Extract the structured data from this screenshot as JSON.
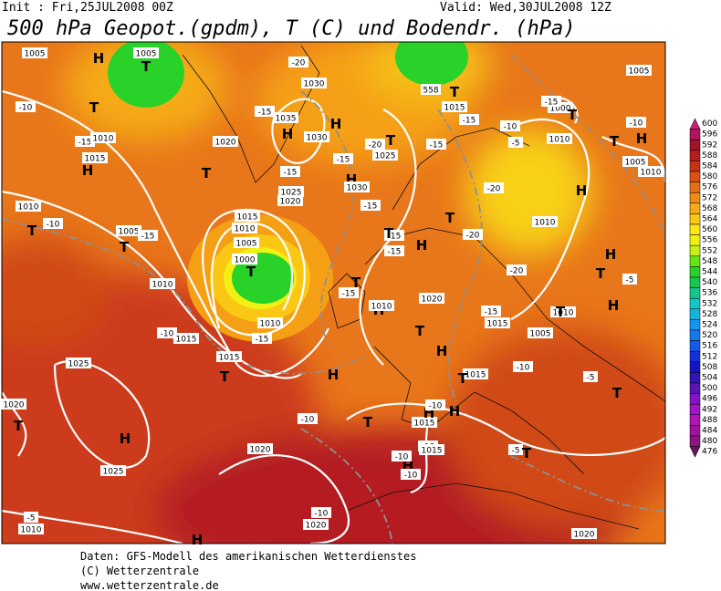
{
  "header": {
    "init": "Init : Fri,25JUL2008 00Z",
    "valid": "Valid: Wed,30JUL2008 12Z",
    "title": "500 hPa Geopot.(gpdm), T (C) und Bodendr. (hPa)"
  },
  "colorbar": {
    "values": [
      600,
      596,
      592,
      588,
      584,
      580,
      576,
      572,
      568,
      564,
      560,
      556,
      552,
      548,
      544,
      540,
      536,
      532,
      528,
      524,
      520,
      516,
      512,
      508,
      504,
      500,
      496,
      492,
      488,
      484,
      480,
      476
    ],
    "colors": [
      "#c81e78",
      "#b0145a",
      "#a01428",
      "#b41e1e",
      "#c83214",
      "#dc5014",
      "#e66e14",
      "#f08c14",
      "#f5aa14",
      "#fac814",
      "#ffe614",
      "#f0f014",
      "#c8f014",
      "#64e614",
      "#28d228",
      "#14c850",
      "#14c88c",
      "#14c8c8",
      "#14b4dc",
      "#1496f0",
      "#1478f0",
      "#145af0",
      "#1432dc",
      "#1414c8",
      "#3214b4",
      "#5a14b4",
      "#8214c8",
      "#a014c8",
      "#b414b4",
      "#a0149b",
      "#8c1482",
      "#64145a"
    ]
  },
  "map_labels": [
    "H",
    "T",
    "1005",
    "1005",
    "-10",
    "T",
    "-15",
    "1010",
    "1015",
    "H",
    "T",
    "1020",
    "H",
    "1035",
    "1030",
    "H",
    "1030",
    "-20",
    "-15",
    "-15",
    "-15",
    "1025",
    "-20",
    "T",
    "H",
    "1030",
    "1025",
    "1020",
    "-15",
    "1015",
    "1010",
    "1005",
    "T",
    "1000",
    "1010",
    "-10",
    "T",
    "1005",
    "-15",
    "T",
    "1010",
    "-10",
    "1015",
    "1010",
    "-15",
    "1015",
    "T",
    "1025",
    "1020",
    "T",
    "H",
    "1025",
    "1020",
    "-10",
    "H",
    "T",
    "1015",
    "H",
    "-10",
    "H",
    "1015",
    "T",
    "-10",
    "H",
    "T",
    "1020",
    "1015",
    "-15",
    "H",
    "1010",
    "T",
    "-15",
    "H",
    "-15",
    "-15",
    "T",
    "-20",
    "T",
    "-20",
    "-15",
    "1015",
    "T",
    "-15",
    "558",
    "-10",
    "-5",
    "1000",
    "T",
    "-15",
    "1010",
    "1010",
    "H",
    "-20",
    "H",
    "T",
    "-5",
    "H",
    "1010",
    "T",
    "1005",
    "T",
    "-5",
    "-5",
    "T",
    "-10",
    "1015",
    "H",
    "-10",
    "-10",
    "-10",
    "1020",
    "H",
    "1020",
    "-5",
    "1010",
    "1005",
    "-10",
    "T",
    "H",
    "1005",
    "1010"
  ],
  "footer": [
    "Daten: GFS-Modell des amerikanischen Wetterdienstes",
    "(C) Wetterzentrale",
    "www.wetterzentrale.de"
  ]
}
